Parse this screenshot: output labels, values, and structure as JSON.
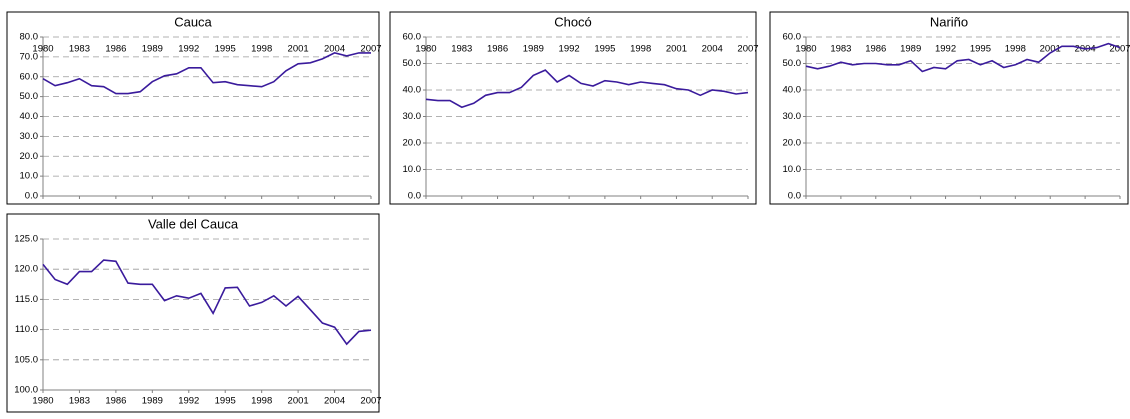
{
  "chart_data": [
    {
      "type": "line",
      "title": "Cauca",
      "x": [
        1980,
        1981,
        1982,
        1983,
        1984,
        1985,
        1986,
        1987,
        1988,
        1989,
        1990,
        1991,
        1992,
        1993,
        1994,
        1995,
        1996,
        1997,
        1998,
        1999,
        2000,
        2001,
        2002,
        2003,
        2004,
        2005,
        2006,
        2007
      ],
      "values": [
        59,
        55.5,
        57,
        59,
        55.5,
        55,
        51.5,
        51.5,
        52.5,
        57.5,
        60.5,
        61.5,
        64.5,
        64.5,
        57,
        57.5,
        56,
        55.5,
        55,
        57.5,
        63,
        66.5,
        67,
        69,
        72,
        70.5,
        72,
        72
      ],
      "color": "#3a1b9c",
      "xlim": [
        1980,
        2007
      ],
      "xticks": [
        1980,
        1983,
        1986,
        1989,
        1992,
        1995,
        1998,
        2001,
        2004,
        2007
      ],
      "ylim": [
        0,
        80
      ],
      "yticks": [
        {
          "value": 0,
          "label": "0.0"
        },
        {
          "value": 10,
          "label": "10.0"
        },
        {
          "value": 20,
          "label": "20.0"
        },
        {
          "value": 30,
          "label": "30.0"
        },
        {
          "value": 40,
          "label": "40.0"
        },
        {
          "value": 50,
          "label": "50.0"
        },
        {
          "value": 60,
          "label": "60.0"
        },
        {
          "value": 70,
          "label": "70.0"
        },
        {
          "value": 80,
          "label": "80.0"
        }
      ],
      "grid": true,
      "xaxis_labels": "top"
    },
    {
      "type": "line",
      "title": "Chocó",
      "x": [
        1980,
        1981,
        1982,
        1983,
        1984,
        1985,
        1986,
        1987,
        1988,
        1989,
        1990,
        1991,
        1992,
        1993,
        1994,
        1995,
        1996,
        1997,
        1998,
        1999,
        2000,
        2001,
        2002,
        2003,
        2004,
        2005,
        2006,
        2007
      ],
      "values": [
        36.5,
        36,
        36,
        33.5,
        35,
        38,
        39,
        39,
        41,
        45.5,
        47.5,
        43,
        45.5,
        42.5,
        41.5,
        43.5,
        43,
        42,
        43,
        42.5,
        42,
        40.5,
        40,
        38,
        40,
        39.5,
        38.5,
        39
      ],
      "color": "#3a1b9c",
      "xlim": [
        1980,
        2007
      ],
      "xticks": [
        1980,
        1983,
        1986,
        1989,
        1992,
        1995,
        1998,
        2001,
        2004,
        2007
      ],
      "ylim": [
        0,
        60
      ],
      "yticks": [
        {
          "value": 0,
          "label": "0.0"
        },
        {
          "value": 10,
          "label": "10.0"
        },
        {
          "value": 20,
          "label": "20.0"
        },
        {
          "value": 30,
          "label": "30.0"
        },
        {
          "value": 40,
          "label": "40.0"
        },
        {
          "value": 50,
          "label": "50.0"
        },
        {
          "value": 60,
          "label": "60.0"
        }
      ],
      "grid": true,
      "xaxis_labels": "top"
    },
    {
      "type": "line",
      "title": "Nariño",
      "x": [
        1980,
        1981,
        1982,
        1983,
        1984,
        1985,
        1986,
        1987,
        1988,
        1989,
        1990,
        1991,
        1992,
        1993,
        1994,
        1995,
        1996,
        1997,
        1998,
        1999,
        2000,
        2001,
        2002,
        2003,
        2004,
        2005,
        2006,
        2007
      ],
      "values": [
        49,
        48,
        49,
        50.5,
        49.5,
        50,
        50,
        49.5,
        49.5,
        51,
        47,
        48.5,
        48,
        51,
        51.5,
        49.5,
        51,
        48.5,
        49.5,
        51.5,
        50.5,
        54,
        56.5,
        56.5,
        55.5,
        56,
        57.5,
        56
      ],
      "color": "#3a1b9c",
      "xlim": [
        1980,
        2007
      ],
      "xticks": [
        1980,
        1983,
        1986,
        1989,
        1992,
        1995,
        1998,
        2001,
        2004,
        2007
      ],
      "ylim": [
        0,
        60
      ],
      "yticks": [
        {
          "value": 0,
          "label": "0.0"
        },
        {
          "value": 10,
          "label": "10.0"
        },
        {
          "value": 20,
          "label": "20.0"
        },
        {
          "value": 30,
          "label": "30.0"
        },
        {
          "value": 40,
          "label": "40.0"
        },
        {
          "value": 50,
          "label": "50.0"
        },
        {
          "value": 60,
          "label": "60.0"
        }
      ],
      "grid": true,
      "xaxis_labels": "top"
    },
    {
      "type": "line",
      "title": "Valle del Cauca",
      "x": [
        1980,
        1981,
        1982,
        1983,
        1984,
        1985,
        1986,
        1987,
        1988,
        1989,
        1990,
        1991,
        1992,
        1993,
        1994,
        1995,
        1996,
        1997,
        1998,
        1999,
        2000,
        2001,
        2002,
        2003,
        2004,
        2005,
        2006,
        2007
      ],
      "values": [
        120.8,
        118.3,
        117.5,
        119.6,
        119.6,
        121.5,
        121.3,
        117.7,
        117.5,
        117.5,
        114.8,
        115.6,
        115.2,
        116,
        112.7,
        116.9,
        117,
        113.9,
        114.5,
        115.6,
        113.9,
        115.5,
        113.3,
        111.1,
        110.4,
        107.6,
        109.7,
        109.9
      ],
      "color": "#3a1b9c",
      "xlim": [
        1980,
        2007
      ],
      "xticks": [
        1980,
        1983,
        1986,
        1989,
        1992,
        1995,
        1998,
        2001,
        2004,
        2007
      ],
      "ylim": [
        100,
        125
      ],
      "yticks": [
        {
          "value": 100,
          "label": "100.0"
        },
        {
          "value": 105,
          "label": "105.0"
        },
        {
          "value": 110,
          "label": "110.0"
        },
        {
          "value": 115,
          "label": "115.0"
        },
        {
          "value": 120,
          "label": "120.0"
        },
        {
          "value": 125,
          "label": "125.0"
        }
      ],
      "grid": true,
      "xaxis_labels": "bottom"
    }
  ]
}
